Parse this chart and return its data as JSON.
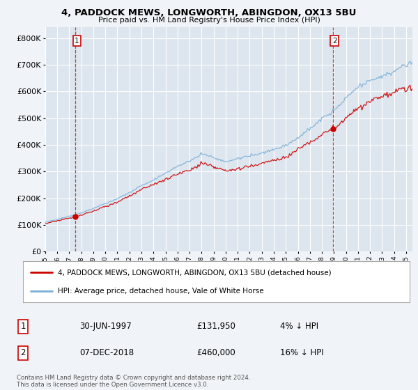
{
  "title_line1": "4, PADDOCK MEWS, LONGWORTH, ABINGDON, OX13 5BU",
  "title_line2": "Price paid vs. HM Land Registry's House Price Index (HPI)",
  "ylim": [
    0,
    840000
  ],
  "yticks": [
    0,
    100000,
    200000,
    300000,
    400000,
    500000,
    600000,
    700000,
    800000
  ],
  "ytick_labels": [
    "£0",
    "£100K",
    "£200K",
    "£300K",
    "£400K",
    "£500K",
    "£600K",
    "£700K",
    "£800K"
  ],
  "xlim_start": 1995.0,
  "xlim_end": 2025.5,
  "xticks": [
    1995,
    1996,
    1997,
    1998,
    1999,
    2000,
    2001,
    2002,
    2003,
    2004,
    2005,
    2006,
    2007,
    2008,
    2009,
    2010,
    2011,
    2012,
    2013,
    2014,
    2015,
    2016,
    2017,
    2018,
    2019,
    2020,
    2021,
    2022,
    2023,
    2024,
    2025
  ],
  "fig_bg_color": "#f0f4f8",
  "plot_bg_color": "#dde6ef",
  "grid_color": "#ffffff",
  "hpi_color": "#7aaed6",
  "price_color": "#cc0000",
  "sale1_x": 1997.5,
  "sale1_y": 131950,
  "sale1_label": "1",
  "sale2_x": 2018.92,
  "sale2_y": 460000,
  "sale2_label": "2",
  "legend_line1": "4, PADDOCK MEWS, LONGWORTH, ABINGDON, OX13 5BU (detached house)",
  "legend_line2": "HPI: Average price, detached house, Vale of White Horse",
  "table_row1": [
    "1",
    "30-JUN-1997",
    "£131,950",
    "4% ↓ HPI"
  ],
  "table_row2": [
    "2",
    "07-DEC-2018",
    "£460,000",
    "16% ↓ HPI"
  ],
  "footnote": "Contains HM Land Registry data © Crown copyright and database right 2024.\nThis data is licensed under the Open Government Licence v3.0."
}
